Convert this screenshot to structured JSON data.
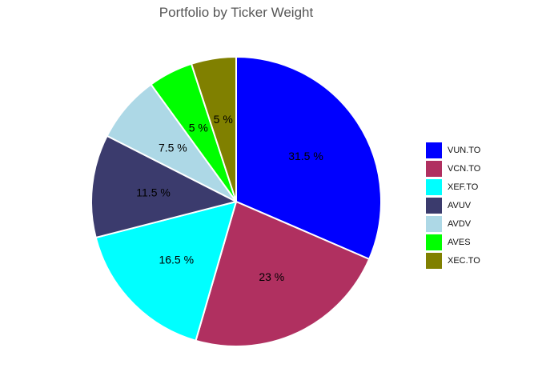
{
  "chart_data": {
    "type": "pie",
    "title": "Portfolio by Ticker Weight",
    "legend_position": "right",
    "slices": [
      {
        "label": "VUN.TO",
        "value": 31.5,
        "value_label": "31.5 %",
        "color": "#0000FF"
      },
      {
        "label": "VCN.TO",
        "value": 23,
        "value_label": "23 %",
        "color": "#B03060"
      },
      {
        "label": "XEF.TO",
        "value": 16.5,
        "value_label": "16.5 %",
        "color": "#00FFFF"
      },
      {
        "label": "AVUV",
        "value": 11.5,
        "value_label": "11.5 %",
        "color": "#3B3B6D"
      },
      {
        "label": "AVDV",
        "value": 7.5,
        "value_label": "7.5 %",
        "color": "#ADD8E6"
      },
      {
        "label": "AVES",
        "value": 5,
        "value_label": "5 %",
        "color": "#00FF00"
      },
      {
        "label": "XEC.TO",
        "value": 5,
        "value_label": "5 %",
        "color": "#808000"
      }
    ]
  }
}
